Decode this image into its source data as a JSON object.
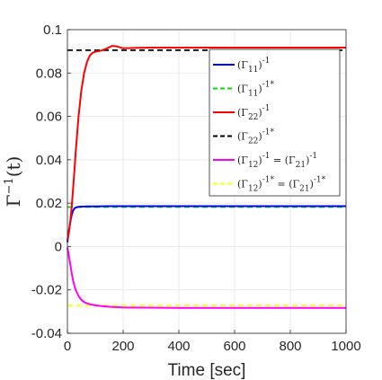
{
  "chart_data": {
    "type": "line",
    "xlabel": "Time [sec]",
    "ylabel": "Γ",
    "ylabel_sup": "−1",
    "ylabel_arg": "(t)",
    "xlim": [
      0,
      1000
    ],
    "ylim": [
      -0.04,
      0.1
    ],
    "grid": true,
    "legend_position": "top-right",
    "xticks": [
      "0",
      "200",
      "400",
      "600",
      "800",
      "1000"
    ],
    "xtick_values": [
      0,
      200,
      400,
      600,
      800,
      1000
    ],
    "yticks": [
      "-0.04",
      "-0.02",
      "0",
      "0.02",
      "0.04",
      "0.06",
      "0.08",
      "0.1"
    ],
    "ytick_values": [
      -0.04,
      -0.02,
      0,
      0.02,
      0.04,
      0.06,
      0.08,
      0.1
    ],
    "series": [
      {
        "name": "(Γ11)-1",
        "legend_base": "(Γ",
        "legend_sub": "11",
        "legend_close": ")",
        "legend_sup": "-1",
        "color": "#0000ff",
        "dash": "none",
        "x": [
          0,
          5,
          10,
          15,
          20,
          25,
          30,
          40,
          50,
          70,
          100,
          150,
          200,
          300,
          400,
          600,
          800,
          1000
        ],
        "y": [
          0.002,
          0.007,
          0.011,
          0.0145,
          0.0165,
          0.0175,
          0.018,
          0.0183,
          0.0184,
          0.0185,
          0.0185,
          0.0186,
          0.0186,
          0.0186,
          0.0186,
          0.0186,
          0.0186,
          0.0186
        ]
      },
      {
        "name": "(Γ11)-1*",
        "legend_base": "(Γ",
        "legend_sub": "11",
        "legend_close": ")",
        "legend_sup": "-1*",
        "color": "#00e000",
        "dash": "6,4",
        "x": [
          0,
          1000
        ],
        "y": [
          0.0182,
          0.0182
        ]
      },
      {
        "name": "(Γ22)-1",
        "legend_base": "(Γ",
        "legend_sub": "22",
        "legend_close": ")",
        "legend_sup": "-1",
        "color": "#ff0000",
        "dash": "none",
        "x": [
          0,
          5,
          10,
          15,
          20,
          25,
          30,
          40,
          50,
          60,
          70,
          80,
          90,
          100,
          120,
          140,
          160,
          180,
          200,
          250,
          300,
          400,
          600,
          800,
          1000
        ],
        "y": [
          0.003,
          0.006,
          0.011,
          0.018,
          0.026,
          0.035,
          0.044,
          0.06,
          0.072,
          0.08,
          0.085,
          0.088,
          0.0893,
          0.0898,
          0.0903,
          0.0912,
          0.0925,
          0.0922,
          0.0914,
          0.0916,
          0.0917,
          0.0917,
          0.0917,
          0.0917,
          0.0917
        ]
      },
      {
        "name": "(Γ22)-1*",
        "legend_base": "(Γ",
        "legend_sub": "22",
        "legend_close": ")",
        "legend_sup": "-1*",
        "color": "#000000",
        "dash": "6,4",
        "x": [
          0,
          1000
        ],
        "y": [
          0.0905,
          0.0905
        ]
      },
      {
        "name": "(Γ12)-1 = (Γ21)-1",
        "legend_base": "(Γ",
        "legend_sub": "12",
        "legend_close": ")",
        "legend_sup": "-1",
        "legend_eq": " = ",
        "legend_base2": "(Γ",
        "legend_sub2": "21",
        "legend_close2": ")",
        "legend_sup2": "-1",
        "color": "#ff00ff",
        "dash": "none",
        "x": [
          0,
          5,
          10,
          15,
          20,
          25,
          30,
          40,
          50,
          60,
          70,
          80,
          100,
          120,
          150,
          200,
          300,
          400,
          600,
          800,
          1000
        ],
        "y": [
          -0.0005,
          -0.004,
          -0.008,
          -0.012,
          -0.0155,
          -0.018,
          -0.0201,
          -0.0228,
          -0.0246,
          -0.0256,
          -0.0262,
          -0.0266,
          -0.0271,
          -0.0274,
          -0.0278,
          -0.0281,
          -0.0282,
          -0.0283,
          -0.0283,
          -0.0283,
          -0.0283
        ]
      },
      {
        "name": "(Γ12)-1* = (Γ21)-1*",
        "legend_base": "(Γ",
        "legend_sub": "12",
        "legend_close": ")",
        "legend_sup": "-1*",
        "legend_eq": " = ",
        "legend_base2": "(Γ",
        "legend_sub2": "21",
        "legend_close2": ")",
        "legend_sup2": "-1*",
        "color": "#ffff00",
        "dash": "6,4",
        "x": [
          0,
          1000
        ],
        "y": [
          -0.0272,
          -0.0272
        ]
      }
    ]
  }
}
